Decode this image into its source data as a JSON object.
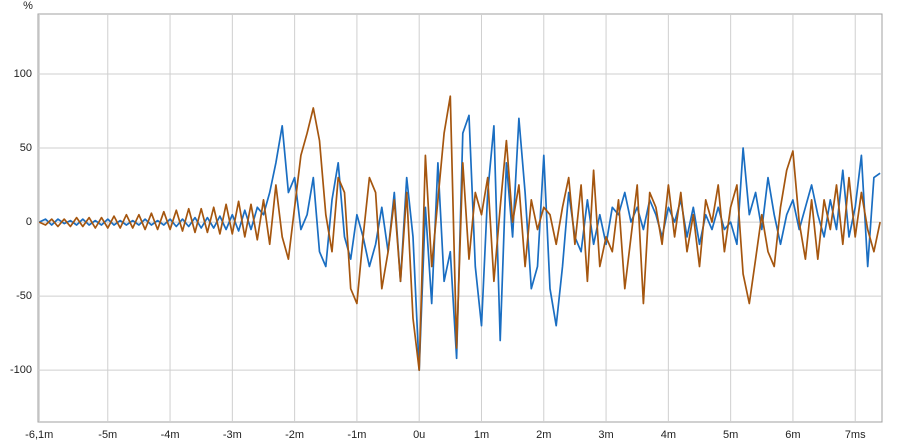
{
  "chart_data": {
    "type": "line",
    "ylabel": "%",
    "x": [
      -6.1,
      -6.0,
      -5.9,
      -5.8,
      -5.7,
      -5.6,
      -5.5,
      -5.4,
      -5.3,
      -5.2,
      -5.1,
      -5.0,
      -4.9,
      -4.8,
      -4.7,
      -4.6,
      -4.5,
      -4.4,
      -4.3,
      -4.2,
      -4.1,
      -4.0,
      -3.9,
      -3.8,
      -3.7,
      -3.6,
      -3.5,
      -3.4,
      -3.3,
      -3.2,
      -3.1,
      -3.0,
      -2.9,
      -2.8,
      -2.7,
      -2.6,
      -2.5,
      -2.4,
      -2.3,
      -2.2,
      -2.1,
      -2.0,
      -1.9,
      -1.8,
      -1.7,
      -1.6,
      -1.5,
      -1.4,
      -1.3,
      -1.2,
      -1.1,
      -1.0,
      -0.9,
      -0.8,
      -0.7,
      -0.6,
      -0.5,
      -0.4,
      -0.3,
      -0.2,
      -0.1,
      0.0,
      0.1,
      0.2,
      0.3,
      0.4,
      0.5,
      0.6,
      0.7,
      0.8,
      0.9,
      1.0,
      1.1,
      1.2,
      1.3,
      1.4,
      1.5,
      1.6,
      1.7,
      1.8,
      1.9,
      2.0,
      2.1,
      2.2,
      2.3,
      2.4,
      2.5,
      2.6,
      2.7,
      2.8,
      2.9,
      3.0,
      3.1,
      3.2,
      3.3,
      3.4,
      3.5,
      3.6,
      3.7,
      3.8,
      3.9,
      4.0,
      4.1,
      4.2,
      4.3,
      4.4,
      4.5,
      4.6,
      4.7,
      4.8,
      4.9,
      5.0,
      5.1,
      5.2,
      5.3,
      5.4,
      5.5,
      5.6,
      5.7,
      5.8,
      5.9,
      6.0,
      6.1,
      6.2,
      6.3,
      6.4,
      6.5,
      6.6,
      6.7,
      6.8,
      6.9,
      7.0,
      7.1,
      7.2,
      7.3,
      7.4
    ],
    "series": [
      {
        "color": "#1a6ec2",
        "values": [
          0,
          2,
          -2,
          2,
          -1,
          1,
          -2,
          2,
          -2,
          1,
          -2,
          2,
          -2,
          1,
          -2,
          1,
          -2,
          2,
          -2,
          1,
          -2,
          2,
          -3,
          2,
          -3,
          3,
          -4,
          3,
          -4,
          4,
          -5,
          5,
          -6,
          8,
          -5,
          10,
          5,
          20,
          40,
          65,
          20,
          30,
          -5,
          5,
          30,
          -20,
          -30,
          15,
          40,
          -10,
          -25,
          5,
          -10,
          -30,
          -15,
          10,
          -20,
          20,
          -40,
          30,
          -10,
          -100,
          10,
          -55,
          40,
          -40,
          -20,
          -92,
          60,
          72,
          -30,
          -70,
          20,
          65,
          -80,
          40,
          -10,
          70,
          20,
          -45,
          -30,
          45,
          -45,
          -70,
          -30,
          20,
          -10,
          -20,
          15,
          -15,
          5,
          -15,
          10,
          5,
          20,
          0,
          10,
          -5,
          15,
          5,
          -10,
          10,
          0,
          15,
          -10,
          10,
          -15,
          5,
          -5,
          10,
          -5,
          0,
          -15,
          50,
          5,
          20,
          -5,
          30,
          5,
          -15,
          5,
          15,
          -5,
          10,
          25,
          5,
          -10,
          15,
          -5,
          35,
          -10,
          10,
          45,
          -30,
          30,
          33
        ]
      },
      {
        "color": "#a5560f",
        "values": [
          0,
          -2,
          2,
          -3,
          2,
          -3,
          3,
          -3,
          3,
          -4,
          3,
          -4,
          4,
          -4,
          5,
          -4,
          5,
          -5,
          6,
          -5,
          7,
          -5,
          8,
          -6,
          9,
          -7,
          9,
          -7,
          10,
          -8,
          12,
          -8,
          14,
          -10,
          12,
          -12,
          15,
          -15,
          25,
          -10,
          -25,
          10,
          45,
          60,
          77,
          55,
          5,
          -20,
          30,
          20,
          -45,
          -55,
          -10,
          30,
          20,
          -45,
          -20,
          15,
          -40,
          20,
          -65,
          -100,
          45,
          -30,
          15,
          60,
          85,
          -85,
          40,
          -25,
          20,
          5,
          30,
          -40,
          10,
          55,
          0,
          25,
          -30,
          15,
          -5,
          10,
          5,
          -15,
          10,
          30,
          -15,
          25,
          -40,
          35,
          -30,
          -10,
          -20,
          15,
          -45,
          -10,
          25,
          -55,
          20,
          10,
          -15,
          25,
          -10,
          20,
          -20,
          5,
          -30,
          15,
          0,
          25,
          -20,
          10,
          25,
          -35,
          -55,
          -25,
          5,
          -20,
          -30,
          10,
          35,
          48,
          0,
          -25,
          15,
          -25,
          15,
          -5,
          25,
          -15,
          30,
          -10,
          20,
          -5,
          -20,
          0
        ]
      }
    ],
    "xlim": [
      -6.12,
      7.43
    ],
    "xticks": [
      {
        "value": -6.1,
        "label": "-6,1m"
      },
      {
        "value": -5,
        "label": "-5m"
      },
      {
        "value": -4,
        "label": "-4m"
      },
      {
        "value": -3,
        "label": "-3m"
      },
      {
        "value": -2,
        "label": "-2m"
      },
      {
        "value": -1,
        "label": "-1m"
      },
      {
        "value": 0,
        "label": "0u"
      },
      {
        "value": 1,
        "label": "1m"
      },
      {
        "value": 2,
        "label": "2m"
      },
      {
        "value": 3,
        "label": "3m"
      },
      {
        "value": 4,
        "label": "4m"
      },
      {
        "value": 5,
        "label": "5m"
      },
      {
        "value": 6,
        "label": "6m"
      },
      {
        "value": 7,
        "label": "7ms"
      }
    ],
    "ylim": [
      -135,
      140.5
    ],
    "yticks": [
      -100,
      -50,
      0,
      50,
      100
    ],
    "grid": true
  }
}
